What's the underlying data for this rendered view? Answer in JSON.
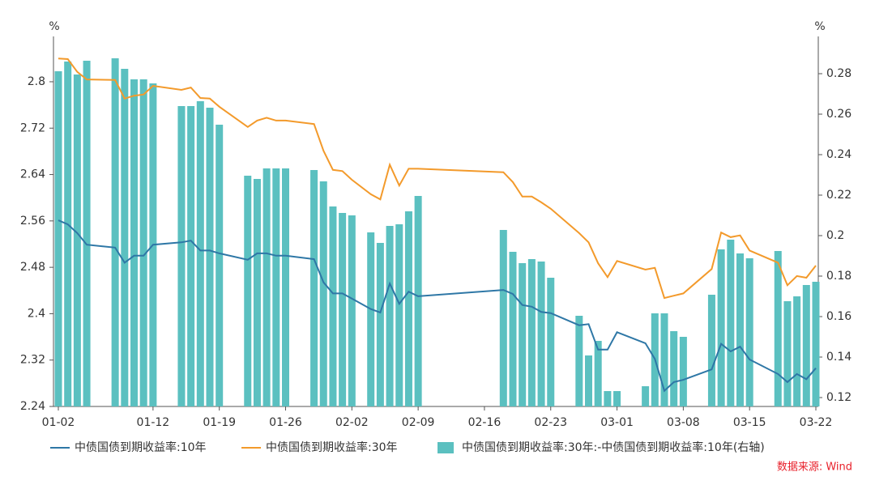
{
  "chart_data": {
    "type": "bar-line",
    "x": [
      "01-02",
      "01-03",
      "01-04",
      "01-05",
      "01-08",
      "01-09",
      "01-10",
      "01-11",
      "01-12",
      "01-15",
      "01-16",
      "01-17",
      "01-18",
      "01-19",
      "01-22",
      "01-23",
      "01-24",
      "01-25",
      "01-26",
      "01-29",
      "01-30",
      "01-31",
      "02-01",
      "02-02",
      "02-04",
      "02-05",
      "02-06",
      "02-07",
      "02-08",
      "02-09",
      "02-18",
      "02-19",
      "02-20",
      "02-21",
      "02-22",
      "02-23",
      "02-26",
      "02-27",
      "02-28",
      "02-29",
      "03-01",
      "03-04",
      "03-05",
      "03-06",
      "03-07",
      "03-08",
      "03-11",
      "03-12",
      "03-13",
      "03-14",
      "03-15",
      "03-18",
      "03-19",
      "03-20",
      "03-21",
      "03-22"
    ],
    "xlim": [
      "01-02",
      "03-22"
    ],
    "xticks": [
      "01-02",
      "01-12",
      "01-19",
      "01-26",
      "02-02",
      "02-09",
      "02-16",
      "02-23",
      "03-01",
      "03-08",
      "03-15",
      "03-22"
    ],
    "y_unit": "%",
    "y2_unit": "%",
    "ylim": [
      2.24,
      2.86
    ],
    "yticks": [
      2.24,
      2.32,
      2.4,
      2.48,
      2.56,
      2.64,
      2.72,
      2.8
    ],
    "y2lim": [
      0.1156,
      0.2932
    ],
    "y2ticks": [
      0.12,
      0.14,
      0.16,
      0.18,
      0.2,
      0.22,
      0.24,
      0.26,
      0.28
    ],
    "series": [
      {
        "name": "中债国债到期收益率:10年",
        "type": "line",
        "color": "#2e77a6",
        "axis": "y",
        "values": [
          2.561,
          2.554,
          2.539,
          2.519,
          2.514,
          2.488,
          2.5,
          2.5,
          2.519,
          2.523,
          2.526,
          2.509,
          2.509,
          2.504,
          2.493,
          2.504,
          2.504,
          2.5,
          2.5,
          2.494,
          2.454,
          2.435,
          2.435,
          2.426,
          2.408,
          2.402,
          2.452,
          2.417,
          2.438,
          2.43,
          2.441,
          2.434,
          2.415,
          2.412,
          2.403,
          2.401,
          2.38,
          2.382,
          2.338,
          2.338,
          2.368,
          2.349,
          2.322,
          2.267,
          2.282,
          2.286,
          2.304,
          2.348,
          2.335,
          2.343,
          2.321,
          2.296,
          2.282,
          2.296,
          2.287,
          2.306
        ]
      },
      {
        "name": "中债国债到期收益率:30年",
        "type": "line",
        "color": "#f39a2b",
        "axis": "y",
        "values": [
          2.84,
          2.839,
          2.817,
          2.804,
          2.803,
          2.771,
          2.776,
          2.778,
          2.793,
          2.786,
          2.79,
          2.772,
          2.771,
          2.757,
          2.722,
          2.733,
          2.738,
          2.733,
          2.733,
          2.727,
          2.681,
          2.648,
          2.646,
          2.631,
          2.606,
          2.597,
          2.657,
          2.621,
          2.65,
          2.65,
          2.644,
          2.627,
          2.602,
          2.602,
          2.592,
          2.581,
          2.539,
          2.523,
          2.487,
          2.463,
          2.491,
          2.476,
          2.479,
          2.427,
          2.431,
          2.435,
          2.477,
          2.54,
          2.532,
          2.535,
          2.509,
          2.488,
          2.449,
          2.465,
          2.462,
          2.483
        ]
      },
      {
        "name": "中债国债到期收益率:30年:-中债国债到期收益率:10年(右轴)",
        "type": "bar",
        "color": "#5bc0c0",
        "axis": "y2",
        "values": [
          0.2812,
          0.286,
          0.2796,
          0.2864,
          0.2876,
          0.2824,
          0.2772,
          0.2772,
          0.2752,
          0.264,
          0.264,
          0.2664,
          0.2632,
          0.2548,
          0.2296,
          0.228,
          0.2332,
          0.2332,
          0.2332,
          0.2324,
          0.2268,
          0.2144,
          0.2112,
          0.21,
          0.2016,
          0.1964,
          0.2048,
          0.2056,
          0.212,
          0.2196,
          0.2028,
          0.192,
          0.1864,
          0.1884,
          0.1872,
          0.1792,
          0.1604,
          0.1408,
          0.148,
          0.1232,
          0.1232,
          0.1256,
          0.1616,
          0.1616,
          0.1528,
          0.15,
          0.1708,
          0.1932,
          0.198,
          0.1912,
          0.1888,
          0.1924,
          0.1676,
          0.17,
          0.1756,
          0.1772
        ]
      }
    ],
    "source": "数据来源: Wind",
    "source_color": "#e8202a"
  }
}
